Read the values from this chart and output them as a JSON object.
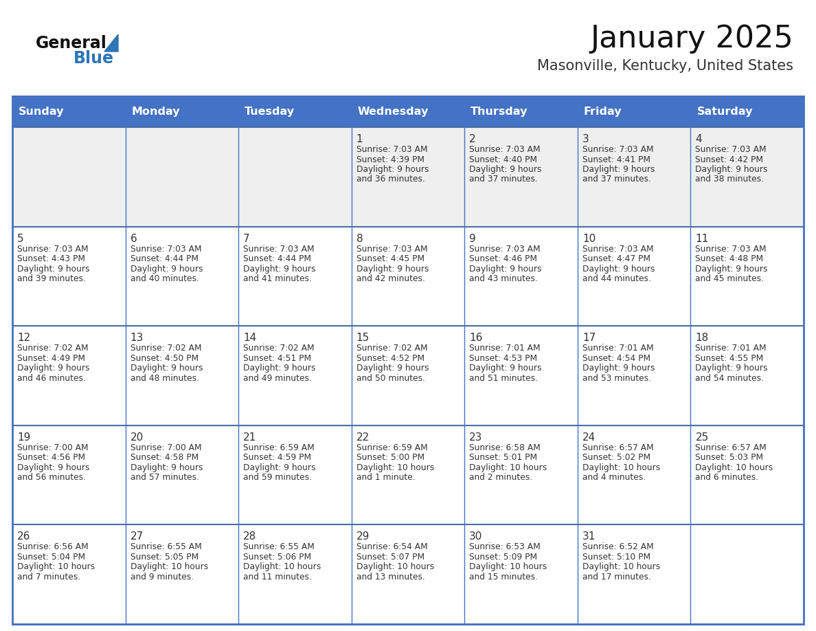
{
  "title": "January 2025",
  "subtitle": "Masonville, Kentucky, United States",
  "days_of_week": [
    "Sunday",
    "Monday",
    "Tuesday",
    "Wednesday",
    "Thursday",
    "Friday",
    "Saturday"
  ],
  "header_bg": "#4472C4",
  "header_text": "#FFFFFF",
  "row_bg_row0": "#EFEFEF",
  "row_bg_other": "#FFFFFF",
  "cell_text_color": "#333333",
  "date_text_color": "#333333",
  "grid_line_color": "#4472C4",
  "row_divider_color": "#4A6FA5",
  "background_color": "#FFFFFF",
  "title_color": "#111111",
  "subtitle_color": "#333333",
  "logo_general_color": "#111111",
  "logo_blue_color": "#2E75B6",
  "calendar_data": [
    [
      null,
      null,
      null,
      {
        "day": 1,
        "sunrise": "7:03 AM",
        "sunset": "4:39 PM",
        "daylight": "9 hours and 36 minutes."
      },
      {
        "day": 2,
        "sunrise": "7:03 AM",
        "sunset": "4:40 PM",
        "daylight": "9 hours and 37 minutes."
      },
      {
        "day": 3,
        "sunrise": "7:03 AM",
        "sunset": "4:41 PM",
        "daylight": "9 hours and 37 minutes."
      },
      {
        "day": 4,
        "sunrise": "7:03 AM",
        "sunset": "4:42 PM",
        "daylight": "9 hours and 38 minutes."
      }
    ],
    [
      {
        "day": 5,
        "sunrise": "7:03 AM",
        "sunset": "4:43 PM",
        "daylight": "9 hours and 39 minutes."
      },
      {
        "day": 6,
        "sunrise": "7:03 AM",
        "sunset": "4:44 PM",
        "daylight": "9 hours and 40 minutes."
      },
      {
        "day": 7,
        "sunrise": "7:03 AM",
        "sunset": "4:44 PM",
        "daylight": "9 hours and 41 minutes."
      },
      {
        "day": 8,
        "sunrise": "7:03 AM",
        "sunset": "4:45 PM",
        "daylight": "9 hours and 42 minutes."
      },
      {
        "day": 9,
        "sunrise": "7:03 AM",
        "sunset": "4:46 PM",
        "daylight": "9 hours and 43 minutes."
      },
      {
        "day": 10,
        "sunrise": "7:03 AM",
        "sunset": "4:47 PM",
        "daylight": "9 hours and 44 minutes."
      },
      {
        "day": 11,
        "sunrise": "7:03 AM",
        "sunset": "4:48 PM",
        "daylight": "9 hours and 45 minutes."
      }
    ],
    [
      {
        "day": 12,
        "sunrise": "7:02 AM",
        "sunset": "4:49 PM",
        "daylight": "9 hours and 46 minutes."
      },
      {
        "day": 13,
        "sunrise": "7:02 AM",
        "sunset": "4:50 PM",
        "daylight": "9 hours and 48 minutes."
      },
      {
        "day": 14,
        "sunrise": "7:02 AM",
        "sunset": "4:51 PM",
        "daylight": "9 hours and 49 minutes."
      },
      {
        "day": 15,
        "sunrise": "7:02 AM",
        "sunset": "4:52 PM",
        "daylight": "9 hours and 50 minutes."
      },
      {
        "day": 16,
        "sunrise": "7:01 AM",
        "sunset": "4:53 PM",
        "daylight": "9 hours and 51 minutes."
      },
      {
        "day": 17,
        "sunrise": "7:01 AM",
        "sunset": "4:54 PM",
        "daylight": "9 hours and 53 minutes."
      },
      {
        "day": 18,
        "sunrise": "7:01 AM",
        "sunset": "4:55 PM",
        "daylight": "9 hours and 54 minutes."
      }
    ],
    [
      {
        "day": 19,
        "sunrise": "7:00 AM",
        "sunset": "4:56 PM",
        "daylight": "9 hours and 56 minutes."
      },
      {
        "day": 20,
        "sunrise": "7:00 AM",
        "sunset": "4:58 PM",
        "daylight": "9 hours and 57 minutes."
      },
      {
        "day": 21,
        "sunrise": "6:59 AM",
        "sunset": "4:59 PM",
        "daylight": "9 hours and 59 minutes."
      },
      {
        "day": 22,
        "sunrise": "6:59 AM",
        "sunset": "5:00 PM",
        "daylight": "10 hours and 1 minute."
      },
      {
        "day": 23,
        "sunrise": "6:58 AM",
        "sunset": "5:01 PM",
        "daylight": "10 hours and 2 minutes."
      },
      {
        "day": 24,
        "sunrise": "6:57 AM",
        "sunset": "5:02 PM",
        "daylight": "10 hours and 4 minutes."
      },
      {
        "day": 25,
        "sunrise": "6:57 AM",
        "sunset": "5:03 PM",
        "daylight": "10 hours and 6 minutes."
      }
    ],
    [
      {
        "day": 26,
        "sunrise": "6:56 AM",
        "sunset": "5:04 PM",
        "daylight": "10 hours and 7 minutes."
      },
      {
        "day": 27,
        "sunrise": "6:55 AM",
        "sunset": "5:05 PM",
        "daylight": "10 hours and 9 minutes."
      },
      {
        "day": 28,
        "sunrise": "6:55 AM",
        "sunset": "5:06 PM",
        "daylight": "10 hours and 11 minutes."
      },
      {
        "day": 29,
        "sunrise": "6:54 AM",
        "sunset": "5:07 PM",
        "daylight": "10 hours and 13 minutes."
      },
      {
        "day": 30,
        "sunrise": "6:53 AM",
        "sunset": "5:09 PM",
        "daylight": "10 hours and 15 minutes."
      },
      {
        "day": 31,
        "sunrise": "6:52 AM",
        "sunset": "5:10 PM",
        "daylight": "10 hours and 17 minutes."
      },
      null
    ]
  ]
}
